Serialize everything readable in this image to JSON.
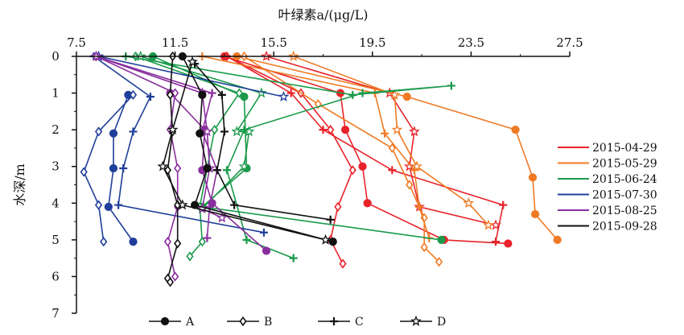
{
  "chart_data": {
    "type": "line",
    "xlabel": "叶绿素a/(μg/L)",
    "ylabel": "水深/m",
    "xlim": [
      7.5,
      27.5
    ],
    "ylim": [
      0,
      7
    ],
    "x_axis_position": "top",
    "y_axis_inverted": true,
    "x_ticks": [
      "7.5",
      "11.5",
      "15.5",
      "19.5",
      "23.5",
      "27.5"
    ],
    "y_ticks": [
      "0",
      "1",
      "2",
      "3",
      "4",
      "5",
      "6",
      "7"
    ],
    "grid": false,
    "legend_dates_placement": "right",
    "legend_markers_placement": "bottom",
    "legend_dates": [
      {
        "label": "2015-04-29",
        "color": "#e8232a"
      },
      {
        "label": "2015-05-29",
        "color": "#ef7a24"
      },
      {
        "label": "2015-06-24",
        "color": "#1a9a4a"
      },
      {
        "label": "2015-07-30",
        "color": "#1f3f9a"
      },
      {
        "label": "2015-08-25",
        "color": "#8a2e9e"
      },
      {
        "label": "2015-09-28",
        "color": "#111111"
      }
    ],
    "legend_markers": [
      {
        "label": "A",
        "marker": "circle"
      },
      {
        "label": "B",
        "marker": "diamond"
      },
      {
        "label": "C",
        "marker": "plus"
      },
      {
        "label": "D",
        "marker": "star"
      }
    ],
    "series": [
      {
        "date": "2015-04-29",
        "color": "#e8232a",
        "site": "A",
        "marker": "circle",
        "points": [
          [
            13.5,
            0
          ],
          [
            18.2,
            1
          ],
          [
            18.4,
            2
          ],
          [
            19.1,
            3
          ],
          [
            19.3,
            4
          ],
          [
            22.4,
            5
          ],
          [
            25.0,
            5.1
          ]
        ]
      },
      {
        "date": "2015-04-29",
        "color": "#e8232a",
        "site": "B",
        "marker": "diamond",
        "points": [
          [
            13.6,
            0
          ],
          [
            16.6,
            1
          ],
          [
            17.8,
            2
          ],
          [
            18.7,
            3.1
          ],
          [
            18.1,
            4.1
          ],
          [
            17.8,
            5
          ],
          [
            18.3,
            5.65
          ]
        ]
      },
      {
        "date": "2015-04-29",
        "color": "#e8232a",
        "site": "C",
        "marker": "plus",
        "points": [
          [
            13.6,
            0
          ],
          [
            16.2,
            1
          ],
          [
            17.5,
            2
          ],
          [
            20.3,
            3.1
          ],
          [
            24.8,
            4.05
          ],
          [
            24.5,
            5.05
          ]
        ]
      },
      {
        "date": "2015-04-29",
        "color": "#e8232a",
        "site": "D",
        "marker": "star",
        "points": [
          [
            15.2,
            0
          ],
          [
            20.2,
            1
          ],
          [
            21.2,
            2.05
          ],
          [
            21.0,
            3
          ],
          [
            21.4,
            4.1
          ],
          [
            24.5,
            4.6
          ]
        ]
      },
      {
        "date": "2015-05-29",
        "color": "#ef7a24",
        "site": "A",
        "marker": "circle",
        "points": [
          [
            14.0,
            0
          ],
          [
            20.9,
            1.1
          ],
          [
            25.3,
            2
          ],
          [
            26.0,
            3.3
          ],
          [
            26.1,
            4.3
          ],
          [
            27.0,
            5.0
          ]
        ]
      },
      {
        "date": "2015-05-29",
        "color": "#ef7a24",
        "site": "B",
        "marker": "diamond",
        "points": [
          [
            14.3,
            0
          ],
          [
            17.3,
            1.3
          ],
          [
            20.3,
            2.5
          ],
          [
            21.0,
            3.5
          ],
          [
            21.6,
            4.4
          ],
          [
            21.6,
            5.2
          ],
          [
            22.2,
            5.6
          ]
        ]
      },
      {
        "date": "2015-05-29",
        "color": "#ef7a24",
        "site": "C",
        "marker": "plus",
        "points": [
          [
            12.6,
            0
          ],
          [
            19.6,
            1
          ],
          [
            20.0,
            2.1
          ],
          [
            21.2,
            3.1
          ],
          [
            21.4,
            4.1
          ],
          [
            21.8,
            4.95
          ]
        ]
      },
      {
        "date": "2015-05-29",
        "color": "#ef7a24",
        "site": "D",
        "marker": "star",
        "points": [
          [
            16.3,
            0
          ],
          [
            20.4,
            1.05
          ],
          [
            20.5,
            2
          ],
          [
            21.3,
            3
          ],
          [
            23.4,
            4.0
          ],
          [
            24.2,
            4.6
          ]
        ]
      },
      {
        "date": "2015-06-24",
        "color": "#1a9a4a",
        "site": "A",
        "marker": "circle",
        "points": [
          [
            10.6,
            0
          ],
          [
            14.3,
            1.1
          ],
          [
            14.4,
            3.05
          ],
          [
            12.6,
            4.1
          ],
          [
            22.3,
            5.0
          ]
        ]
      },
      {
        "date": "2015-06-24",
        "color": "#1a9a4a",
        "site": "B",
        "marker": "diamond",
        "points": [
          [
            9.9,
            0
          ],
          [
            14.1,
            1
          ],
          [
            13.1,
            2
          ],
          [
            12.5,
            4.1
          ],
          [
            12.6,
            5.05
          ],
          [
            12.1,
            5.45
          ]
        ]
      },
      {
        "date": "2015-06-24",
        "color": "#1a9a4a",
        "site": "C",
        "marker": "plus",
        "points": [
          [
            9.5,
            0
          ],
          [
            18.7,
            1.05
          ],
          [
            22.7,
            0.8
          ],
          [
            19.1,
            1
          ],
          [
            14.3,
            2
          ],
          [
            13.6,
            3.1
          ],
          [
            14.4,
            5
          ],
          [
            16.3,
            5.5
          ]
        ]
      },
      {
        "date": "2015-06-24",
        "color": "#1a9a4a",
        "site": "D",
        "marker": "star",
        "points": [
          [
            10.1,
            0
          ],
          [
            15.0,
            1
          ],
          [
            14.0,
            2.05
          ],
          [
            14.5,
            2.05
          ],
          [
            14.3,
            3.0
          ],
          [
            12.6,
            4.15
          ]
        ]
      },
      {
        "date": "2015-07-30",
        "color": "#1f3f9a",
        "site": "A",
        "marker": "circle",
        "points": [
          [
            9.6,
            1.05
          ],
          [
            9.0,
            2.1
          ],
          [
            9.0,
            3.05
          ],
          [
            8.8,
            4.1
          ],
          [
            9.8,
            5.05
          ]
        ]
      },
      {
        "date": "2015-07-30",
        "color": "#1f3f9a",
        "site": "B",
        "marker": "diamond",
        "points": [
          [
            9.8,
            1.05
          ],
          [
            8.4,
            2.05
          ],
          [
            7.8,
            3.15
          ],
          [
            8.4,
            4.05
          ],
          [
            8.6,
            5.05
          ]
        ]
      },
      {
        "date": "2015-07-30",
        "color": "#1f3f9a",
        "site": "C",
        "marker": "plus",
        "points": [
          [
            8.2,
            0
          ],
          [
            10.5,
            1.1
          ],
          [
            9.8,
            2.05
          ],
          [
            9.4,
            3.05
          ],
          [
            9.2,
            4.05
          ],
          [
            15.1,
            4.8
          ]
        ]
      },
      {
        "date": "2015-07-30",
        "color": "#1f3f9a",
        "site": "D",
        "marker": "star",
        "points": [
          [
            8.4,
            0
          ],
          [
            15.9,
            1.1
          ]
        ]
      },
      {
        "date": "2015-08-25",
        "color": "#8a2e9e",
        "site": "A",
        "marker": "circle",
        "points": [
          [
            11.3,
            1.0
          ],
          [
            12.7,
            2
          ],
          [
            12.6,
            3.1
          ],
          [
            13.0,
            4.0
          ],
          [
            15.2,
            5.3
          ]
        ]
      },
      {
        "date": "2015-08-25",
        "color": "#8a2e9e",
        "site": "B",
        "marker": "diamond",
        "points": [
          [
            8.3,
            0
          ],
          [
            11.5,
            1
          ],
          [
            11.3,
            2
          ],
          [
            11.6,
            3.05
          ],
          [
            11.6,
            4.1
          ],
          [
            11.2,
            5.05
          ],
          [
            11.5,
            6.0
          ]
        ]
      },
      {
        "date": "2015-08-25",
        "color": "#8a2e9e",
        "site": "C",
        "marker": "plus",
        "points": [
          [
            8.3,
            0
          ],
          [
            13.0,
            1
          ],
          [
            12.6,
            2.05
          ],
          [
            13.2,
            3.1
          ],
          [
            12.9,
            4.1
          ],
          [
            12.8,
            4.95
          ]
        ]
      },
      {
        "date": "2015-08-25",
        "color": "#8a2e9e",
        "site": "D",
        "marker": "star",
        "points": [
          [
            8.3,
            0
          ],
          [
            12.6,
            1
          ],
          [
            12.8,
            2.05
          ],
          [
            12.9,
            3.05
          ],
          [
            12.6,
            4.15
          ],
          [
            13.4,
            4.4
          ]
        ]
      },
      {
        "date": "2015-09-28",
        "color": "#111111",
        "site": "A",
        "marker": "circle",
        "points": [
          [
            11.8,
            0
          ],
          [
            12.6,
            1.05
          ],
          [
            12.5,
            2.1
          ],
          [
            12.8,
            3.05
          ],
          [
            12.3,
            4.05
          ],
          [
            17.9,
            5.05
          ]
        ]
      },
      {
        "date": "2015-09-28",
        "color": "#111111",
        "site": "B",
        "marker": "diamond",
        "points": [
          [
            11.4,
            0
          ],
          [
            11.3,
            1.05
          ],
          [
            11.4,
            2.05
          ],
          [
            11.2,
            3.1
          ],
          [
            11.6,
            4.05
          ],
          [
            11.6,
            5.1
          ],
          [
            11.2,
            6.05
          ],
          [
            11.3,
            6.15
          ]
        ]
      },
      {
        "date": "2015-09-28",
        "color": "#111111",
        "site": "C",
        "marker": "plus",
        "points": [
          [
            12.3,
            0.2
          ],
          [
            13.4,
            1.05
          ],
          [
            13.5,
            2.05
          ],
          [
            13.2,
            3.1
          ],
          [
            13.9,
            4.05
          ],
          [
            17.8,
            4.45
          ]
        ]
      },
      {
        "date": "2015-09-28",
        "color": "#111111",
        "site": "D",
        "marker": "star",
        "points": [
          [
            12.2,
            0.15
          ],
          [
            11.4,
            2
          ],
          [
            11.0,
            3
          ],
          [
            11.8,
            4.05
          ],
          [
            17.6,
            5.0
          ]
        ]
      }
    ]
  }
}
